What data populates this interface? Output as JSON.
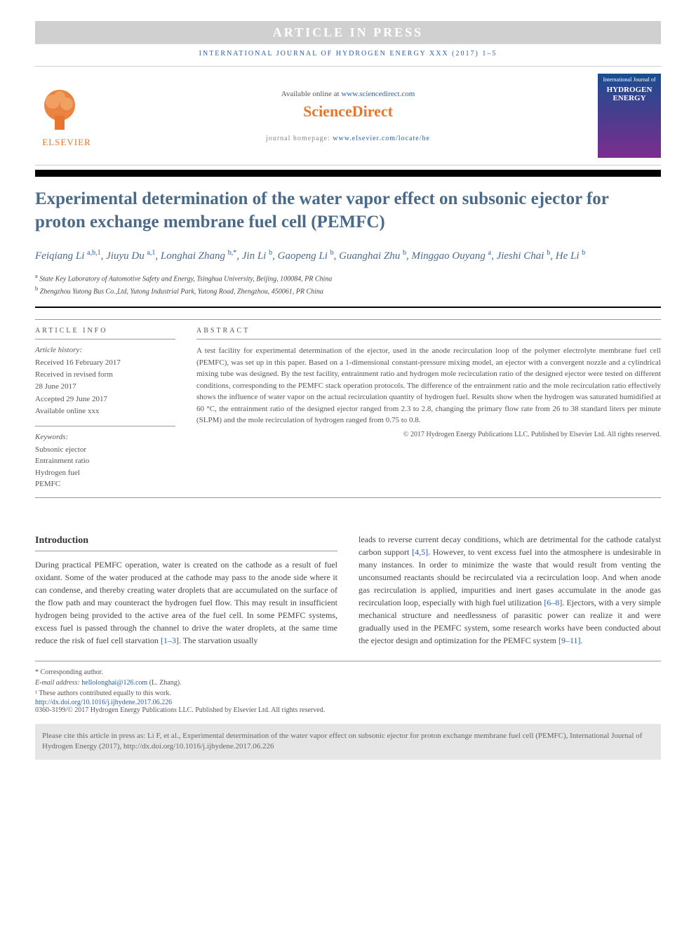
{
  "banner": "ARTICLE IN PRESS",
  "journalHeader": "INTERNATIONAL JOURNAL OF HYDROGEN ENERGY XXX (2017) 1–5",
  "availableText": "Available online at ",
  "availableLink": "www.sciencedirect.com",
  "scienceDirect": "ScienceDirect",
  "homepageLabel": "journal homepage: ",
  "homepageLink": "www.elsevier.com/locate/he",
  "elsevierLabel": "ELSEVIER",
  "coverTop": "International Journal of",
  "coverMain": "HYDROGEN ENERGY",
  "title": "Experimental determination of the water vapor effect on subsonic ejector for proton exchange membrane fuel cell (PEMFC)",
  "authors": [
    {
      "name": "Feiqiang Li",
      "sup": "a,b,1"
    },
    {
      "name": "Jiuyu Du",
      "sup": "a,1"
    },
    {
      "name": "Longhai Zhang",
      "sup": "b,*"
    },
    {
      "name": "Jin Li",
      "sup": "b"
    },
    {
      "name": "Gaopeng Li",
      "sup": "b"
    },
    {
      "name": "Guanghai Zhu",
      "sup": "b"
    },
    {
      "name": "Minggao Ouyang",
      "sup": "a"
    },
    {
      "name": "Jieshi Chai",
      "sup": "b"
    },
    {
      "name": "He Li",
      "sup": "b"
    }
  ],
  "affiliations": [
    {
      "sup": "a",
      "text": "State Key Laboratory of Automotive Safety and Energy, Tsinghua University, Beijing, 100084, PR China"
    },
    {
      "sup": "b",
      "text": "Zhengzhou Yutong Bus Co.,Ltd, Yutong Industrial Park, Yutong Road, Zhengzhou, 450061, PR China"
    }
  ],
  "articleInfoHeading": "ARTICLE INFO",
  "history": {
    "label": "Article history:",
    "items": [
      "Received 16 February 2017",
      "Received in revised form",
      "28 June 2017",
      "Accepted 29 June 2017",
      "Available online xxx"
    ]
  },
  "keywordsLabel": "Keywords:",
  "keywords": [
    "Subsonic ejector",
    "Entrainment ratio",
    "Hydrogen fuel",
    "PEMFC"
  ],
  "abstractHeading": "ABSTRACT",
  "abstractText": "A test facility for experimental determination of the ejector, used in the anode recirculation loop of the polymer electrolyte membrane fuel cell (PEMFC), was set up in this paper. Based on a 1-dimensional constant-pressure mixing model, an ejector with a convergent nozzle and a cylindrical mixing tube was designed. By the test facility, entrainment ratio and hydrogen mole recirculation ratio of the designed ejector were tested on different conditions, corresponding to the PEMFC stack operation protocols. The difference of the entrainment ratio and the mole recirculation ratio effectively shows the influence of water vapor on the actual recirculation quantity of hydrogen fuel. Results show when the hydrogen was saturated humidified at 60 °C, the entrainment ratio of the designed ejector ranged from 2.3 to 2.8, changing the primary flow rate from 26 to 38 standard liters per minute (SLPM) and the mole recirculation of hydrogen ranged from 0.75 to 0.8.",
  "abstractCopyright": "© 2017 Hydrogen Energy Publications LLC. Published by Elsevier Ltd. All rights reserved.",
  "introHeading": "Introduction",
  "introCol1": "During practical PEMFC operation, water is created on the cathode as a result of fuel oxidant. Some of the water produced at the cathode may pass to the anode side where it can condense, and thereby creating water droplets that are accumulated on the surface of the flow path and may counteract the hydrogen fuel flow. This may result in insufficient hydrogen being provided to the active area of the fuel cell. In some PEMFC systems, excess fuel is passed through the channel to drive the water droplets, at the same time reduce the risk of fuel cell starvation ",
  "introRef1": "[1–3]",
  "introCol1b": ". The starvation usually",
  "introCol2a": "leads to reverse current decay conditions, which are detrimental for the cathode catalyst carbon support ",
  "introRef2": "[4,5]",
  "introCol2b": ". However, to vent excess fuel into the atmosphere is undesirable in many instances. In order to minimize the waste that would result from venting the unconsumed reactants should be recirculated via a recirculation loop. And when anode gas recirculation is applied, impurities and inert gases accumulate in the anode gas recirculation loop, especially with high fuel utilization ",
  "introRef3": "[6–8]",
  "introCol2c": ". Ejectors, with a very simple mechanical structure and needlessness of parasitic power can realize it and were gradually used in the PEMFC system, some research works have been conducted about the ejector design and optimization for the PEMFC system ",
  "introRef4": "[9–11]",
  "introCol2d": ".",
  "footnotes": {
    "corresponding": "* Corresponding author.",
    "emailLabel": "E-mail address: ",
    "email": "hellolonghai@126.com",
    "emailSuffix": " (L. Zhang).",
    "contributed": "¹ These authors contributed equally to this work."
  },
  "doi": "http://dx.doi.org/10.1016/j.ijhydene.2017.06.226",
  "bottomCopyright": "0360-3199/© 2017 Hydrogen Energy Publications LLC. Published by Elsevier Ltd. All rights reserved.",
  "citeBox": "Please cite this article in press as: Li F, et al., Experimental determination of the water vapor effect on subsonic ejector for proton exchange membrane fuel cell (PEMFC), International Journal of Hydrogen Energy (2017), http://dx.doi.org/10.1016/j.ijhydene.2017.06.226",
  "colors": {
    "link": "#2b5fa8",
    "elsevier": "#e8762c",
    "titleColor": "#4a6a8a",
    "bannerBg": "#d0d0d0"
  }
}
